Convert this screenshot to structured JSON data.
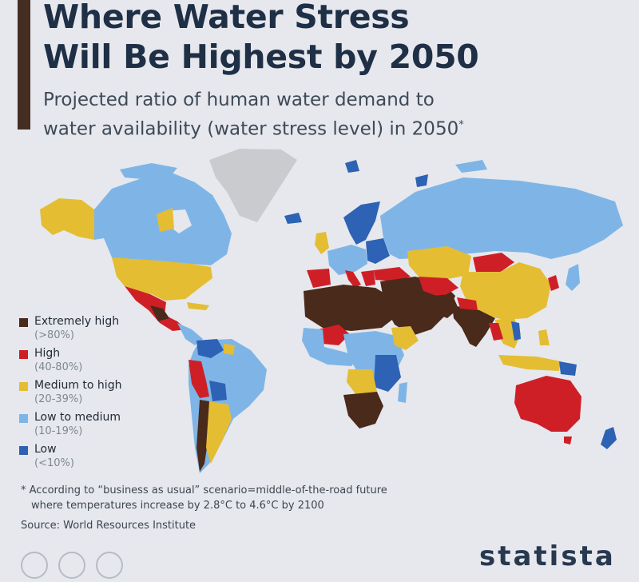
{
  "header": {
    "title_line1": "Where Water Stress",
    "title_line2": "Will Be Highest by 2050",
    "subtitle_line1": "Projected ratio of human water demand to",
    "subtitle_line2": "water availability (water stress level) in 2050",
    "subtitle_mark": "*"
  },
  "colors": {
    "extremely_high": "#4a2a1a",
    "high": "#cf1f26",
    "medium_high": "#e4bd33",
    "low_medium": "#7fb5e6",
    "low": "#2d62b4",
    "no_data": "#c9cbcf",
    "background": "#e6e8ed",
    "accent": "#452d22",
    "title": "#1e2f46"
  },
  "legend": [
    {
      "label": "Extremely high",
      "range": "(>80%)",
      "color": "#4a2a1a"
    },
    {
      "label": "High",
      "range": "(40-80%)",
      "color": "#cf1f26"
    },
    {
      "label": "Medium to high",
      "range": "(20-39%)",
      "color": "#e4bd33"
    },
    {
      "label": "Low to medium",
      "range": "(10-19%)",
      "color": "#7fb5e6"
    },
    {
      "label": "Low",
      "range": "(<10%)",
      "color": "#2d62b4"
    }
  ],
  "footnote": {
    "line1": "* According to “business as usual” scenario=middle-of-the-road future",
    "line2": "where temperatures increase by 2.8°C to 4.6°C by 2100"
  },
  "source": "Source: World Resources Institute",
  "brand": "statista"
}
